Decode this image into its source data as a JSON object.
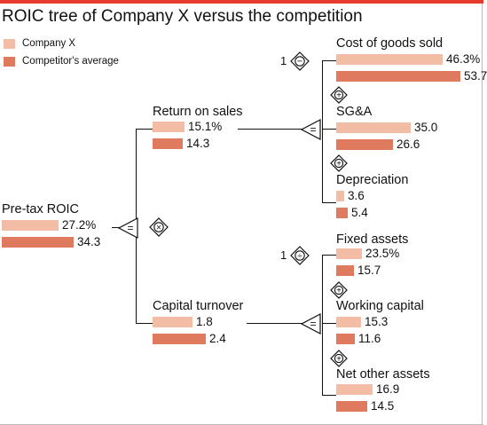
{
  "title": "ROIC tree of Company X versus the competition",
  "colors": {
    "company": "#f2bca5",
    "competitor": "#e07a5f",
    "accent": "#e63a2e",
    "line": "#111111"
  },
  "legend": {
    "company": "Company X",
    "competitor": "Competitor's average"
  },
  "operators": {
    "equals": "=",
    "multiply": "×",
    "plus": "+",
    "minus": "−",
    "divide": "÷"
  },
  "multiplier": "1",
  "nodes": {
    "pretax_roic": {
      "label": "Pre-tax ROIC",
      "company": "27.2%",
      "competitor": "34.3",
      "company_value": 27.2,
      "competitor_value": 34.3
    },
    "return_on_sales": {
      "label": "Return on sales",
      "company": "15.1%",
      "competitor": "14.3",
      "company_value": 15.1,
      "competitor_value": 14.3
    },
    "capital_turnover": {
      "label": "Capital turnover",
      "company": "1.8",
      "competitor": "2.4",
      "company_value": 1.8,
      "competitor_value": 2.4
    },
    "cogs": {
      "label": "Cost of goods sold",
      "company": "46.3%",
      "competitor": "53.7",
      "company_value": 46.3,
      "competitor_value": 53.7
    },
    "sga": {
      "label": "SG&A",
      "company": "35.0",
      "competitor": "26.6",
      "company_value": 35.0,
      "competitor_value": 26.6
    },
    "depreciation": {
      "label": "Depreciation",
      "company": "3.6",
      "competitor": "5.4",
      "company_value": 3.6,
      "competitor_value": 5.4
    },
    "fixed_assets": {
      "label": "Fixed assets",
      "company": "23.5%",
      "competitor": "15.7",
      "company_value": 23.5,
      "competitor_value": 15.7
    },
    "working_capital": {
      "label": "Working capital",
      "company": "15.3",
      "competitor": "11.6",
      "company_value": 15.3,
      "competitor_value": 11.6
    },
    "net_other_assets": {
      "label": "Net other assets",
      "company": "16.9",
      "competitor": "14.5",
      "company_value": 16.9,
      "competitor_value": 14.5
    }
  }
}
